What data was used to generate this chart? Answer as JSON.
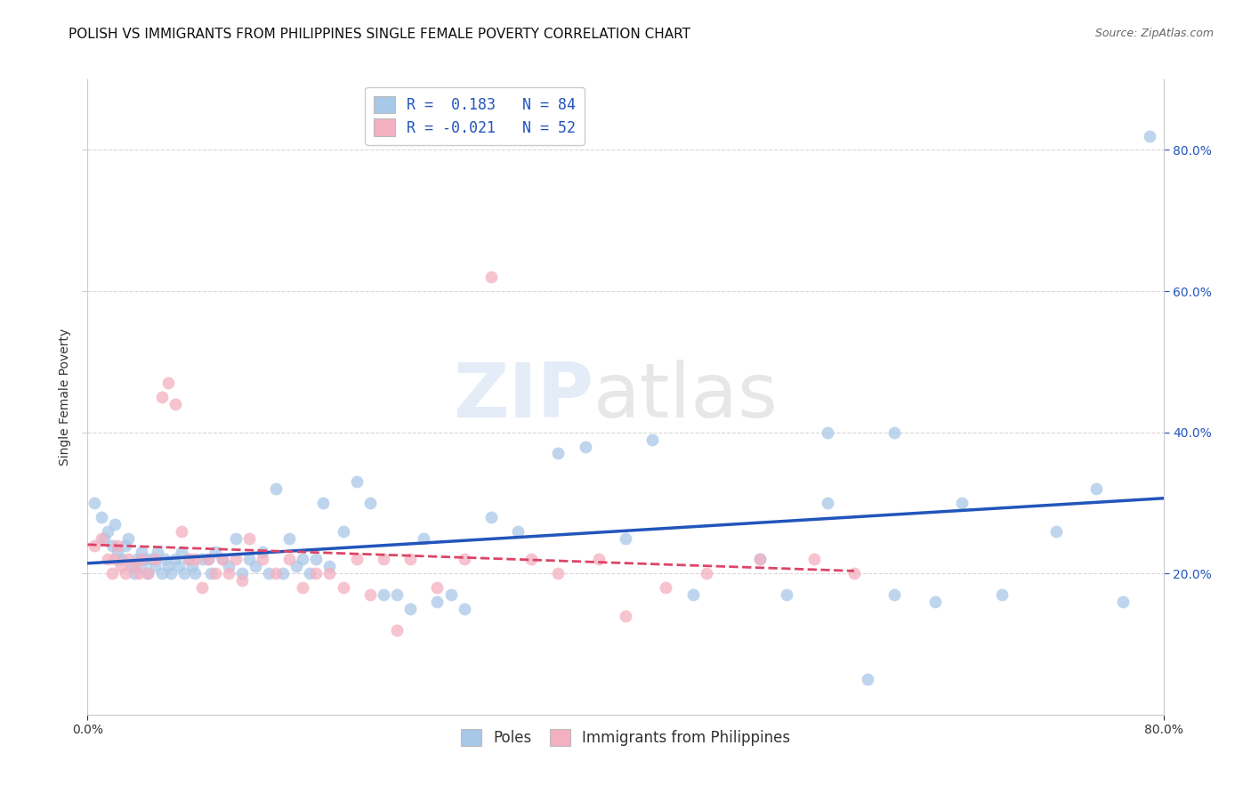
{
  "title": "POLISH VS IMMIGRANTS FROM PHILIPPINES SINGLE FEMALE POVERTY CORRELATION CHART",
  "source": "Source: ZipAtlas.com",
  "ylabel": "Single Female Poverty",
  "xlim": [
    0.0,
    0.8
  ],
  "ylim": [
    0.0,
    0.9
  ],
  "yticks": [
    0.2,
    0.4,
    0.6,
    0.8
  ],
  "xticks": [
    0.0,
    0.8
  ],
  "background_color": "#ffffff",
  "grid_color": "#d8d8d8",
  "blue_color": "#a8c8e8",
  "pink_color": "#f4b0c0",
  "blue_line_color": "#2255bb",
  "pink_line_color": "#dd4466",
  "R_blue": 0.183,
  "N_blue": 84,
  "R_pink": -0.021,
  "N_pink": 52,
  "legend_label_blue": "Poles",
  "legend_label_pink": "Immigrants from Philippines",
  "poles_x": [
    0.005,
    0.01,
    0.012,
    0.015,
    0.018,
    0.02,
    0.022,
    0.025,
    0.028,
    0.03,
    0.032,
    0.035,
    0.037,
    0.04,
    0.04,
    0.042,
    0.045,
    0.047,
    0.05,
    0.05,
    0.052,
    0.055,
    0.057,
    0.06,
    0.062,
    0.065,
    0.068,
    0.07,
    0.072,
    0.075,
    0.078,
    0.08,
    0.085,
    0.09,
    0.092,
    0.095,
    0.1,
    0.105,
    0.11,
    0.115,
    0.12,
    0.125,
    0.13,
    0.135,
    0.14,
    0.145,
    0.15,
    0.155,
    0.16,
    0.165,
    0.17,
    0.175,
    0.18,
    0.19,
    0.2,
    0.21,
    0.22,
    0.23,
    0.24,
    0.25,
    0.26,
    0.27,
    0.28,
    0.3,
    0.32,
    0.35,
    0.37,
    0.4,
    0.42,
    0.45,
    0.5,
    0.52,
    0.55,
    0.58,
    0.6,
    0.63,
    0.65,
    0.68,
    0.72,
    0.75,
    0.77,
    0.79,
    0.55,
    0.6
  ],
  "poles_y": [
    0.3,
    0.28,
    0.25,
    0.26,
    0.24,
    0.27,
    0.23,
    0.22,
    0.24,
    0.25,
    0.21,
    0.2,
    0.22,
    0.23,
    0.21,
    0.22,
    0.2,
    0.22,
    0.22,
    0.21,
    0.23,
    0.2,
    0.22,
    0.21,
    0.2,
    0.22,
    0.21,
    0.23,
    0.2,
    0.22,
    0.21,
    0.2,
    0.22,
    0.22,
    0.2,
    0.23,
    0.22,
    0.21,
    0.25,
    0.2,
    0.22,
    0.21,
    0.23,
    0.2,
    0.32,
    0.2,
    0.25,
    0.21,
    0.22,
    0.2,
    0.22,
    0.3,
    0.21,
    0.26,
    0.33,
    0.3,
    0.17,
    0.17,
    0.15,
    0.25,
    0.16,
    0.17,
    0.15,
    0.28,
    0.26,
    0.37,
    0.38,
    0.25,
    0.39,
    0.17,
    0.22,
    0.17,
    0.3,
    0.05,
    0.17,
    0.16,
    0.3,
    0.17,
    0.26,
    0.32,
    0.16,
    0.82,
    0.4,
    0.4
  ],
  "phil_x": [
    0.005,
    0.01,
    0.015,
    0.018,
    0.02,
    0.022,
    0.025,
    0.028,
    0.03,
    0.035,
    0.038,
    0.04,
    0.045,
    0.05,
    0.055,
    0.06,
    0.065,
    0.07,
    0.075,
    0.08,
    0.085,
    0.09,
    0.095,
    0.1,
    0.105,
    0.11,
    0.115,
    0.12,
    0.13,
    0.14,
    0.15,
    0.16,
    0.17,
    0.18,
    0.19,
    0.2,
    0.21,
    0.22,
    0.23,
    0.24,
    0.26,
    0.28,
    0.3,
    0.33,
    0.35,
    0.38,
    0.4,
    0.43,
    0.46,
    0.5,
    0.54,
    0.57
  ],
  "phil_y": [
    0.24,
    0.25,
    0.22,
    0.2,
    0.22,
    0.24,
    0.21,
    0.2,
    0.22,
    0.21,
    0.2,
    0.22,
    0.2,
    0.22,
    0.45,
    0.47,
    0.44,
    0.26,
    0.22,
    0.22,
    0.18,
    0.22,
    0.2,
    0.22,
    0.2,
    0.22,
    0.19,
    0.25,
    0.22,
    0.2,
    0.22,
    0.18,
    0.2,
    0.2,
    0.18,
    0.22,
    0.17,
    0.22,
    0.12,
    0.22,
    0.18,
    0.22,
    0.62,
    0.22,
    0.2,
    0.22,
    0.14,
    0.18,
    0.2,
    0.22,
    0.22,
    0.2
  ],
  "watermark_zip": "ZIP",
  "watermark_atlas": "atlas",
  "marker_size": 100,
  "title_fontsize": 11,
  "axis_label_fontsize": 10,
  "tick_fontsize": 10,
  "legend_fontsize": 12,
  "source_fontsize": 9
}
